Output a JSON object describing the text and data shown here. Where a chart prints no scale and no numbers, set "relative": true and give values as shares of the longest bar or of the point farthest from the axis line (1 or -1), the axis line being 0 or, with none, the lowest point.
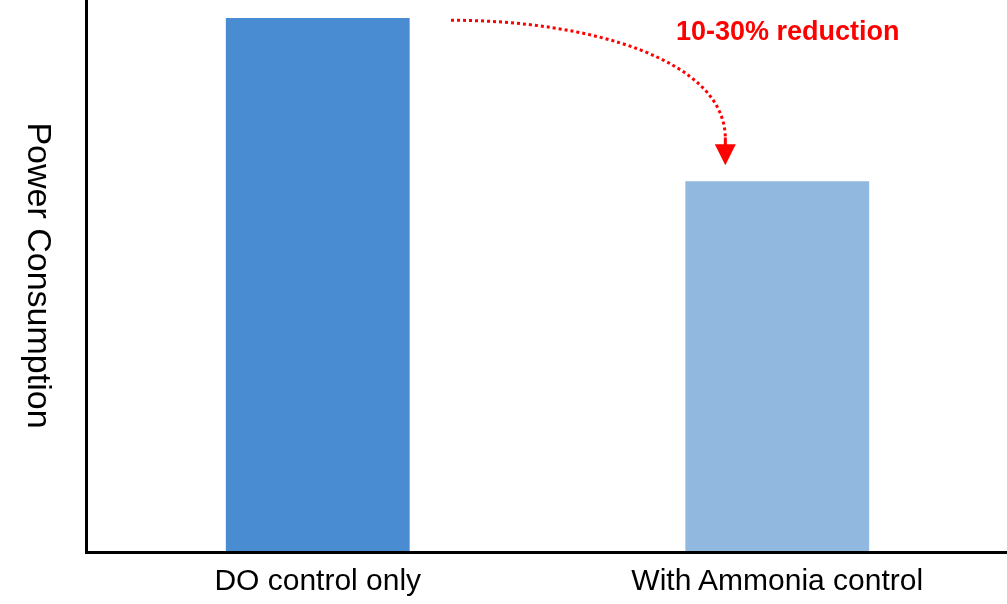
{
  "chart_data": {
    "type": "bar",
    "relative": true,
    "ylabel": "Power Consumption",
    "categories": [
      "DO control only",
      "With Ammonia control"
    ],
    "values": [
      1,
      0.694
    ],
    "colors": [
      "#4a8cd2",
      "#91b9e0"
    ],
    "annotations": [
      "10-30% reduction"
    ]
  }
}
